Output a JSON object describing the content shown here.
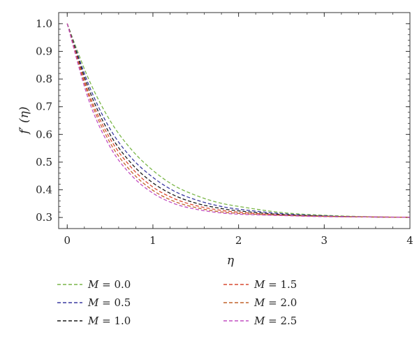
{
  "chart_data": {
    "type": "line",
    "xlabel": "η",
    "ylabel": "f′ (η)",
    "xlim": [
      -0.1,
      4.0
    ],
    "ylim": [
      0.26,
      1.04
    ],
    "x_ticks": [
      0,
      1,
      2,
      3,
      4
    ],
    "x_tick_labels": [
      "0",
      "1",
      "2",
      "3",
      "4"
    ],
    "y_ticks": [
      0.3,
      0.4,
      0.5,
      0.6,
      0.7,
      0.8,
      0.9,
      1.0
    ],
    "y_tick_labels": [
      "0.3",
      "0.4",
      "0.5",
      "0.6",
      "0.7",
      "0.8",
      "0.9",
      "1.0"
    ],
    "grid": false,
    "legend_position": "bottom, two columns",
    "x": [
      0,
      0.25,
      0.5,
      0.75,
      1.0,
      1.25,
      1.5,
      1.75,
      2.0,
      2.5,
      3.0,
      3.5,
      4.0
    ],
    "series": [
      {
        "name": "M = 0.0",
        "color": "#7ab648",
        "values": [
          1.0,
          0.8,
          0.65,
          0.545,
          0.47,
          0.415,
          0.38,
          0.355,
          0.34,
          0.318,
          0.308,
          0.303,
          0.301
        ]
      },
      {
        "name": "M = 0.5",
        "color": "#3a3aa0",
        "values": [
          1.0,
          0.78,
          0.62,
          0.515,
          0.445,
          0.395,
          0.364,
          0.343,
          0.33,
          0.314,
          0.306,
          0.302,
          0.301
        ]
      },
      {
        "name": "M = 1.0",
        "color": "#1a1a1a",
        "values": [
          1.0,
          0.765,
          0.6,
          0.495,
          0.425,
          0.38,
          0.352,
          0.335,
          0.324,
          0.311,
          0.305,
          0.302,
          0.301
        ]
      },
      {
        "name": "M = 1.5",
        "color": "#d94a32",
        "values": [
          1.0,
          0.75,
          0.585,
          0.48,
          0.41,
          0.368,
          0.343,
          0.328,
          0.319,
          0.309,
          0.304,
          0.302,
          0.301
        ]
      },
      {
        "name": "M = 2.0",
        "color": "#c0622a",
        "values": [
          1.0,
          0.74,
          0.57,
          0.465,
          0.398,
          0.358,
          0.336,
          0.322,
          0.315,
          0.308,
          0.304,
          0.302,
          0.301
        ]
      },
      {
        "name": "M = 2.5",
        "color": "#c24fc2",
        "values": [
          1.0,
          0.725,
          0.555,
          0.452,
          0.388,
          0.35,
          0.33,
          0.318,
          0.312,
          0.307,
          0.303,
          0.302,
          0.301
        ]
      }
    ]
  },
  "legend": {
    "items": [
      {
        "var": "M",
        "eq": " = 0.0"
      },
      {
        "var": "M",
        "eq": " = 0.5"
      },
      {
        "var": "M",
        "eq": " = 1.0"
      },
      {
        "var": "M",
        "eq": " = 1.5"
      },
      {
        "var": "M",
        "eq": " = 2.0"
      },
      {
        "var": "M",
        "eq": " = 2.5"
      }
    ]
  }
}
